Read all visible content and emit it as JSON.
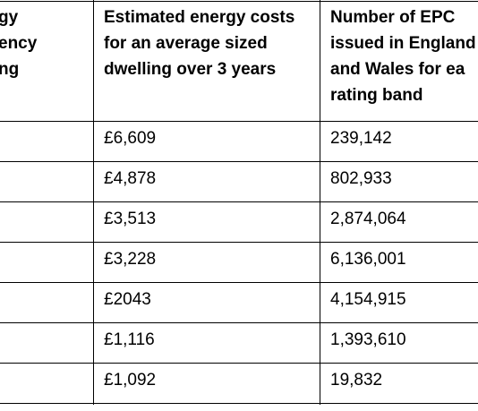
{
  "table": {
    "header": [
      [
        "gy",
        "ency",
        "ng"
      ],
      [
        "Estimated energy costs",
        "for an average sized",
        "dwelling over 3 years"
      ],
      [
        "Number of EPC",
        "issued in England",
        "and Wales for ea",
        "rating band"
      ]
    ],
    "rows": [
      [
        "£6,609",
        "239,142"
      ],
      [
        "£4,878",
        "802,933"
      ],
      [
        "£3,513",
        "2,874,064"
      ],
      [
        "£3,228",
        "6,136,001"
      ],
      [
        "£2043",
        "4,154,915"
      ],
      [
        "£1,116",
        "1,393,610"
      ],
      [
        "£1,092",
        "19,832"
      ]
    ]
  }
}
